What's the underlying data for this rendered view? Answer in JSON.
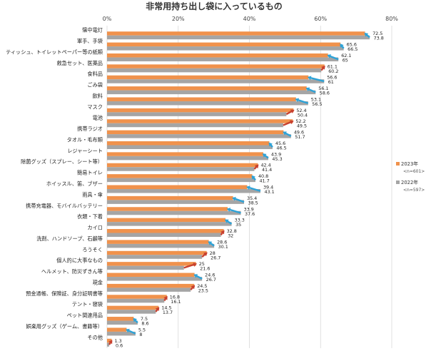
{
  "chart_data": {
    "type": "bar",
    "orientation": "horizontal",
    "title": "非常用持ち出し袋に入っているもの",
    "xlim": [
      0,
      80
    ],
    "ticks": [
      "0%",
      "20%",
      "40%",
      "60%",
      "80%"
    ],
    "tick_values": [
      0,
      20,
      40,
      60,
      80
    ],
    "grid": true,
    "legend_position": "right",
    "categories": [
      "懐中電灯",
      "軍手、手袋",
      "ティッシュ、トイレットペーパー等の紙類",
      "救急セット、医薬品",
      "食料品",
      "ごみ袋",
      "飲料",
      "マスク",
      "電池",
      "携帯ラジオ",
      "タオル・毛布類",
      "レジャーシート",
      "除菌グッズ（スプレー、シート等）",
      "簡易トイレ",
      "ホイッスル、笛、ブザー",
      "雨具・傘",
      "携帯充電器、モバイルバッテリー",
      "衣類・下着",
      "カイロ",
      "洗剤、ハンドソープ、石鹸等",
      "ろうそく",
      "個人的に大事なもの",
      "ヘルメット、防災ずきん等",
      "現金",
      "預金通帳、保険証、身分証明書等",
      "テント・寝袋",
      "ペット関連用品",
      "娯楽用グッズ（ゲーム、書籍等）",
      "その他"
    ],
    "series": [
      {
        "name": "2023年",
        "n_label": "<n=601>",
        "color": "#F0924C",
        "values": [
          72.5,
          65.6,
          62.1,
          61.1,
          56.6,
          56.1,
          53.1,
          52.4,
          52.2,
          49.6,
          45.6,
          43.9,
          42.4,
          40.8,
          39.4,
          35.4,
          33.9,
          33.3,
          32.8,
          28.6,
          28.0,
          25.0,
          24.6,
          24.5,
          16.8,
          14.5,
          7.5,
          5.5,
          1.3
        ]
      },
      {
        "name": "2022年",
        "n_label": "<n=597>",
        "color": "#A5A5A5",
        "values": [
          73.8,
          66.5,
          65,
          60.2,
          61,
          58.6,
          56.5,
          50.4,
          49.5,
          51.7,
          46.5,
          45.3,
          41.4,
          41.7,
          43.1,
          38.5,
          37.6,
          35,
          32,
          30.1,
          26.7,
          21.6,
          26.7,
          23.5,
          16.1,
          13.7,
          8.6,
          8,
          0.6
        ]
      }
    ],
    "arrow_colors": {
      "up": "#2EA3D8",
      "down": "#C8412F"
    }
  }
}
